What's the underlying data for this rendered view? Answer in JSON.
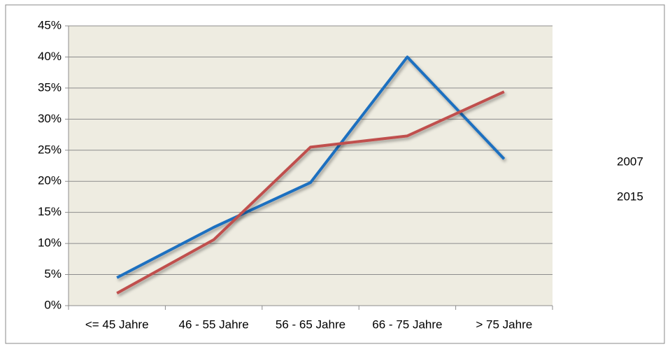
{
  "chart_data": {
    "type": "line",
    "categories": [
      "<= 45 Jahre",
      "46 - 55 Jahre",
      "56 - 65 Jahre",
      "66 - 75 Jahre",
      "> 75 Jahre"
    ],
    "series": [
      {
        "name": "2007",
        "color": "#1f6fc0",
        "values": [
          4.5,
          12.6,
          19.8,
          40.0,
          23.6
        ]
      },
      {
        "name": "2015",
        "color": "#c0504d",
        "values": [
          2.0,
          10.6,
          25.5,
          27.3,
          34.4
        ]
      }
    ],
    "ylim": [
      0,
      45
    ],
    "yticks": [
      {
        "value": 0,
        "label": "0%"
      },
      {
        "value": 5,
        "label": "5%"
      },
      {
        "value": 10,
        "label": "10%"
      },
      {
        "value": 15,
        "label": "15%"
      },
      {
        "value": 20,
        "label": "20%"
      },
      {
        "value": 25,
        "label": "25%"
      },
      {
        "value": 30,
        "label": "30%"
      },
      {
        "value": 35,
        "label": "35%"
      },
      {
        "value": 40,
        "label": "40%"
      },
      {
        "value": 45,
        "label": "45%"
      }
    ],
    "grid": true,
    "legend": "right"
  }
}
